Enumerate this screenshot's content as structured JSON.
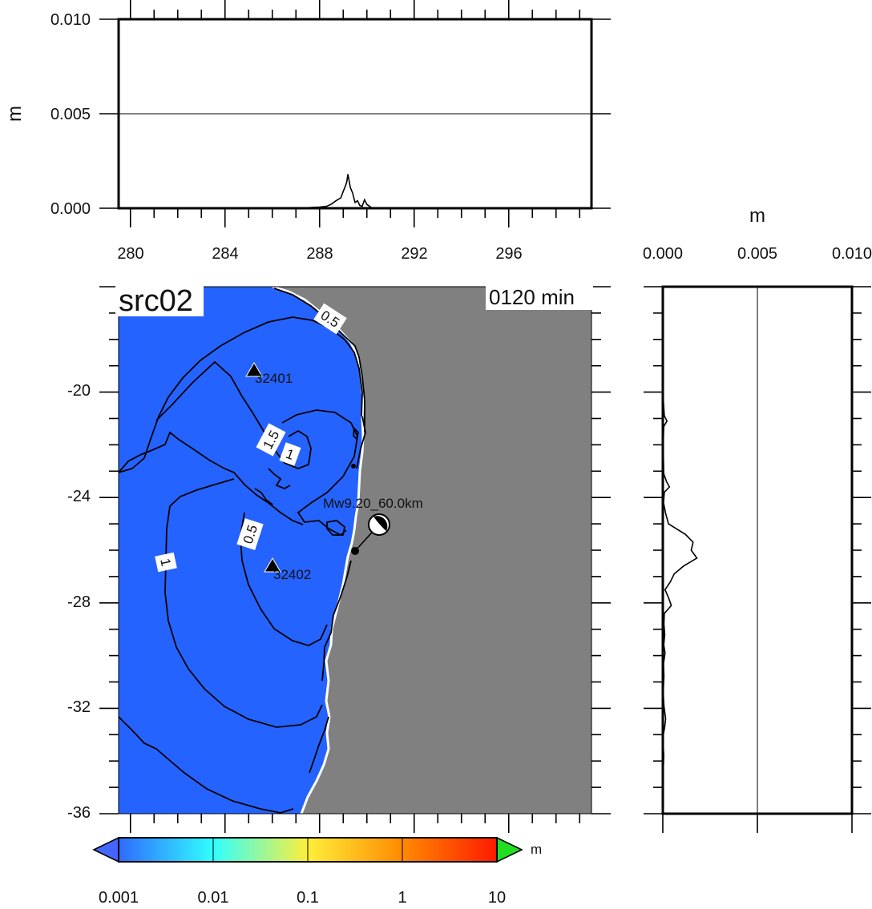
{
  "title_box": "src02",
  "time_box": "0120 min",
  "top_panel": {
    "ylabel": "m",
    "yticks": [
      "0.000",
      "0.005",
      "0.010"
    ],
    "xticks": [
      "280",
      "284",
      "288",
      "292",
      "296"
    ]
  },
  "right_panel": {
    "xlabel": "m",
    "xticks": [
      "0.000",
      "0.005",
      "0.010"
    ]
  },
  "map": {
    "yticks": [
      "-20",
      "-24",
      "-28",
      "-32",
      "-36"
    ],
    "colors": {
      "ocean": "#2563ff",
      "land": "#808080",
      "coast": "#ffffff"
    },
    "contour_labels": [
      "0.5",
      "1.5",
      "1",
      "0.5",
      "1"
    ],
    "stations": [
      {
        "id": "32401"
      },
      {
        "id": "32402"
      }
    ],
    "source_label": "Mw9.20_60.0km"
  },
  "colorbar": {
    "unit": "m",
    "ticks": [
      "0.001",
      "0.01",
      "0.1",
      "1",
      "10"
    ],
    "colors": [
      "#2f6bff",
      "#30ffff",
      "#ffef3a",
      "#ff8a00",
      "#ff1a00"
    ],
    "below_color": "#4466ff",
    "above_color": "#22dd22"
  },
  "chart_data": [
    {
      "type": "line",
      "title": "",
      "xlabel": "",
      "ylabel": "m",
      "xlim": [
        279.5,
        299.5
      ],
      "ylim": [
        0,
        0.01
      ],
      "grid": false,
      "series": [
        {
          "x": [
            279.5,
            280.5,
            281.5,
            282,
            284,
            286,
            287,
            287.5,
            288,
            288.3,
            288.5,
            288.7,
            288.9,
            289.0,
            289.1,
            289.15,
            289.2,
            289.3,
            289.4,
            289.5,
            289.6,
            289.7,
            289.8,
            289.9,
            290.0,
            290.2,
            291,
            293,
            295,
            297,
            299.5
          ],
          "y": [
            0,
            1e-05,
            2e-05,
            0,
            1e-05,
            1e-05,
            2e-05,
            3e-05,
            6e-05,
            0.0001,
            0.00022,
            0.0004,
            0.00055,
            0.0009,
            0.0012,
            0.0014,
            0.0018,
            0.0011,
            0.0008,
            0.0003,
            0.0004,
            0.00015,
            0.0001,
            0.00045,
            0.0002,
            3e-05,
            0,
            0,
            0,
            0,
            0
          ]
        }
      ]
    },
    {
      "type": "line",
      "title": "",
      "xlabel": "m",
      "ylabel": "",
      "xlim": [
        0,
        0.01
      ],
      "ylim": [
        -36,
        -16
      ],
      "grid": false,
      "series": [
        {
          "lat": [
            -16,
            -17,
            -18,
            -19,
            -20,
            -20.9,
            -21.1,
            -21.3,
            -21.6,
            -22,
            -22.7,
            -23.1,
            -23.4,
            -23.6,
            -23.8,
            -24.2,
            -24.6,
            -25.0,
            -25.4,
            -25.7,
            -26.0,
            -26.3,
            -26.6,
            -26.9,
            -27.2,
            -27.5,
            -27.8,
            -28.1,
            -28.4,
            -28.8,
            -29.2,
            -29.6,
            -29.9,
            -30.3,
            -30.8,
            -31.4,
            -31.9,
            -32.4,
            -32.7,
            -33.0,
            -33.4,
            -33.8,
            -34.4,
            -35,
            -36
          ],
          "val": [
            0,
            2e-05,
            0,
            3e-05,
            0,
            8e-05,
            0.00022,
            5e-05,
            4e-05,
            2e-05,
            4e-05,
            5e-05,
            0.0002,
            0.00035,
            8e-05,
            4e-05,
            0.00015,
            0.0003,
            0.0012,
            0.0016,
            0.0015,
            0.0018,
            0.0011,
            0.0006,
            0.0004,
            0.00012,
            0.0003,
            0.00045,
            8e-05,
            6e-05,
            0.0001,
            5e-05,
            0.00012,
            4e-05,
            6e-05,
            2e-05,
            6e-05,
            0.00015,
            0.0001,
            3e-05,
            2e-05,
            5e-05,
            2e-05,
            3e-05,
            0
          ]
        }
      ]
    }
  ]
}
